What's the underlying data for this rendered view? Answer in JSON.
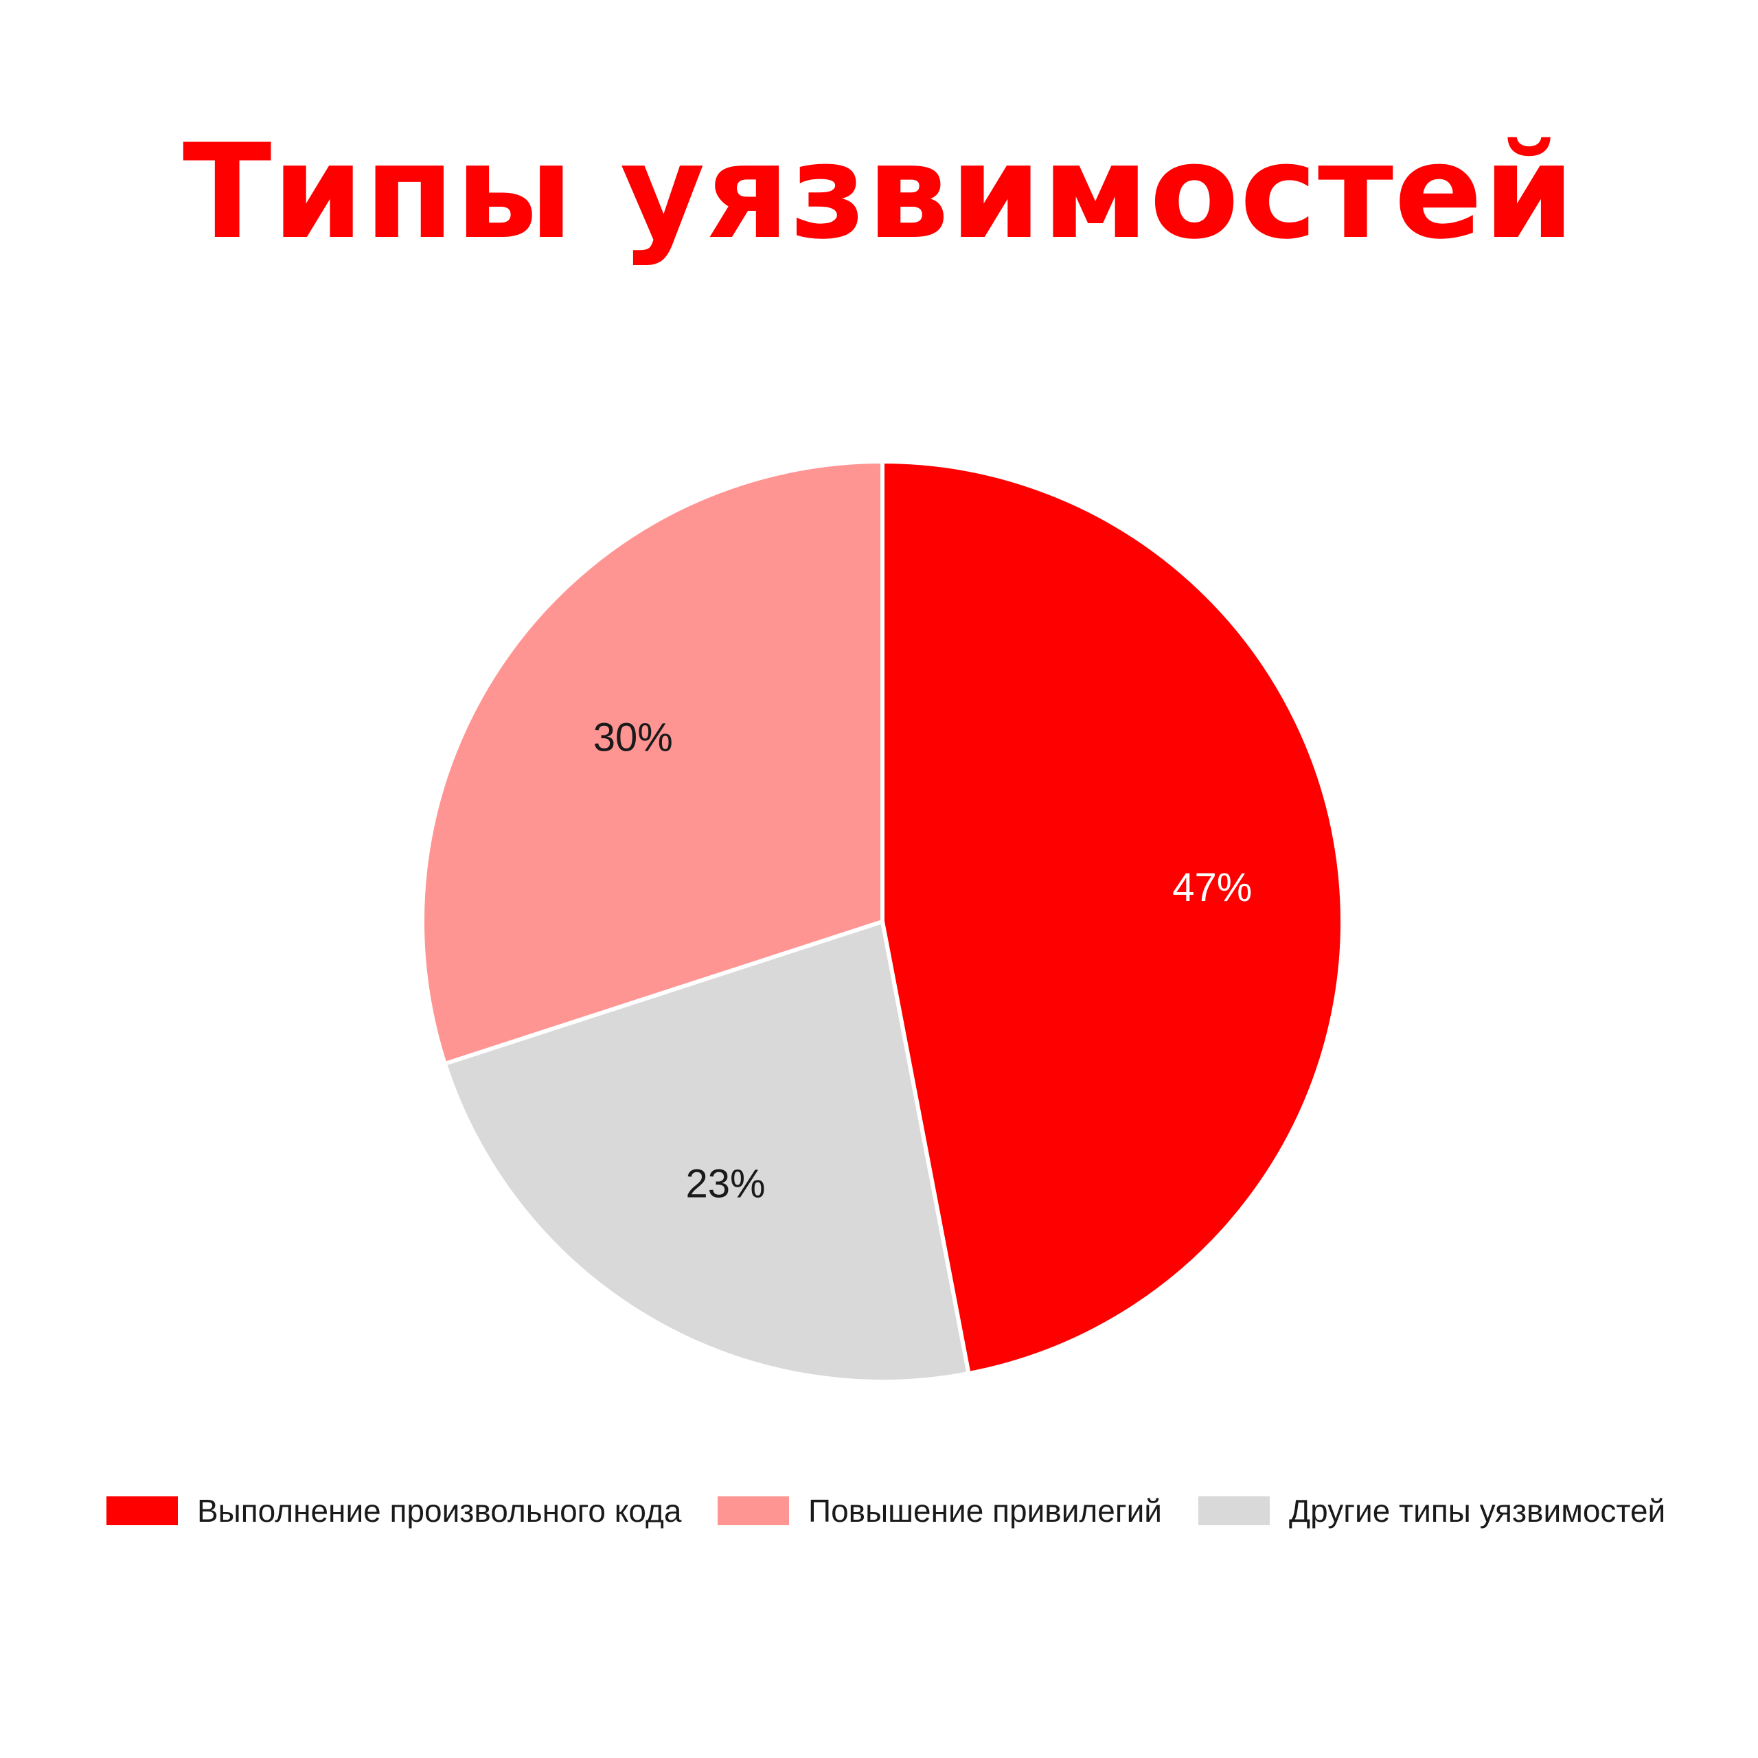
{
  "title": "Типы уязвимостей",
  "chart_data": {
    "type": "pie",
    "title": "Типы уязвимостей",
    "slices": [
      {
        "label": "Выполнение произвольного кода",
        "value": 47,
        "display": "47%",
        "color": "#fe0000",
        "text_color": "#ffffff"
      },
      {
        "label": "Другие типы уязвимостей",
        "value": 23,
        "display": "23%",
        "color": "#d9d9d9",
        "text_color": "#1a1a1a"
      },
      {
        "label": "Повышение привилегий",
        "value": 30,
        "display": "30%",
        "color": "#fe9593",
        "text_color": "#1a1a1a"
      }
    ],
    "start": "12 o'clock",
    "direction": "clockwise",
    "legend_position": "bottom",
    "legend": [
      {
        "label": "Выполнение произвольного кода",
        "color": "#fe0000"
      },
      {
        "label": "Повышение привилегий",
        "color": "#fe9593"
      },
      {
        "label": "Другие типы уязвимостей",
        "color": "#d9d9d9"
      }
    ]
  }
}
